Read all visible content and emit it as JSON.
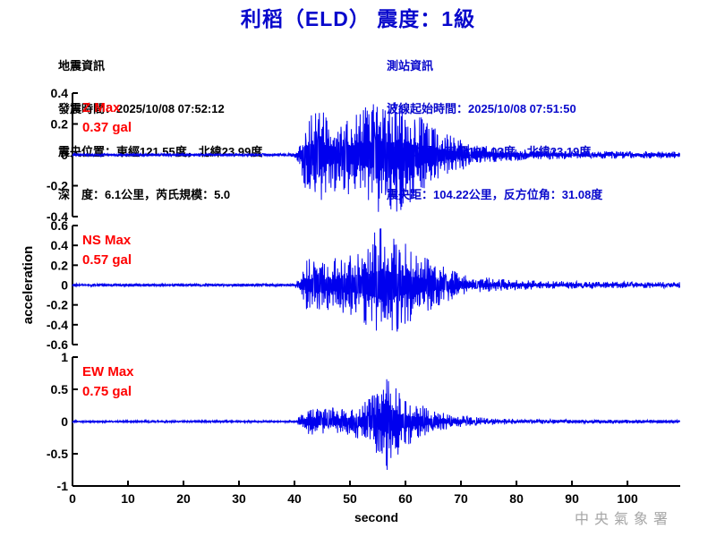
{
  "title": "利稻（ELD） 震度：1級",
  "quake_info": {
    "heading": "地震資訊",
    "lines": [
      "發震時間：2025/10/08 07:52:12",
      "震央位置：東經121.55度，北緯23.99度",
      "深　度：6.1公里，芮氏規模：5.0"
    ]
  },
  "station_info": {
    "heading": "測站資訊",
    "lines": [
      "波線起始時間：2025/10/08 07:51:50",
      "測站位置：東經121.03度，北緯23.19度",
      "震央距：104.22公里，反方位角：31.08度"
    ]
  },
  "watermark": "中央氣象署",
  "colors": {
    "title_blue": "#0808CC",
    "waveform_blue": "#0000EE",
    "max_label_red": "#FF0000",
    "axis_black": "#000000",
    "watermark_gray": "#A6A6A6"
  },
  "chart_data": {
    "type": "line",
    "subtype": "seismogram-3-component",
    "xlabel": "second",
    "ylabel": "acceleration",
    "x_range": [
      0,
      109.5
    ],
    "x_ticks": [
      0,
      10,
      20,
      30,
      40,
      50,
      60,
      70,
      80,
      90,
      100
    ],
    "grid": false,
    "seed": 20251008,
    "panels": [
      {
        "channel": "Z",
        "max_label": "Z Max",
        "max_value_label": "0.37 gal",
        "max_gal": 0.37,
        "ylim": [
          -0.4,
          0.4
        ],
        "y_ticks": [
          0.4,
          0.2,
          0,
          -0.2,
          -0.4
        ],
        "envelope": [
          [
            0,
            0.009
          ],
          [
            38,
            0.009
          ],
          [
            40,
            0.013
          ],
          [
            41,
            0.06
          ],
          [
            41.8,
            0.22
          ],
          [
            43,
            0.26
          ],
          [
            44.5,
            0.3
          ],
          [
            46,
            0.24
          ],
          [
            48,
            0.2
          ],
          [
            50,
            0.24
          ],
          [
            52,
            0.27
          ],
          [
            54,
            0.33
          ],
          [
            55.5,
            0.37
          ],
          [
            57,
            0.32
          ],
          [
            58.5,
            0.34
          ],
          [
            60,
            0.3
          ],
          [
            61.5,
            0.26
          ],
          [
            63,
            0.22
          ],
          [
            65,
            0.16
          ],
          [
            67,
            0.13
          ],
          [
            69,
            0.1
          ],
          [
            71,
            0.08
          ],
          [
            74,
            0.055
          ],
          [
            78,
            0.042
          ],
          [
            82,
            0.032
          ],
          [
            88,
            0.026
          ],
          [
            95,
            0.023
          ],
          [
            103,
            0.021
          ],
          [
            109.5,
            0.02
          ]
        ]
      },
      {
        "channel": "NS",
        "max_label": "NS Max",
        "max_value_label": "0.57 gal",
        "max_gal": 0.57,
        "ylim": [
          -0.6,
          0.6
        ],
        "y_ticks": [
          0.6,
          0.4,
          0.2,
          0,
          -0.2,
          -0.4,
          -0.6
        ],
        "envelope": [
          [
            0,
            0.012
          ],
          [
            38,
            0.012
          ],
          [
            40,
            0.016
          ],
          [
            41,
            0.07
          ],
          [
            42,
            0.2
          ],
          [
            43.5,
            0.24
          ],
          [
            45,
            0.2
          ],
          [
            47,
            0.22
          ],
          [
            49,
            0.25
          ],
          [
            51,
            0.28
          ],
          [
            53,
            0.34
          ],
          [
            54.5,
            0.45
          ],
          [
            56,
            0.57
          ],
          [
            57.5,
            0.45
          ],
          [
            59,
            0.38
          ],
          [
            60.5,
            0.33
          ],
          [
            62,
            0.28
          ],
          [
            64,
            0.22
          ],
          [
            66,
            0.17
          ],
          [
            68,
            0.13
          ],
          [
            70,
            0.1
          ],
          [
            73,
            0.072
          ],
          [
            76,
            0.055
          ],
          [
            80,
            0.042
          ],
          [
            85,
            0.034
          ],
          [
            92,
            0.03
          ],
          [
            100,
            0.027
          ],
          [
            109.5,
            0.024
          ]
        ]
      },
      {
        "channel": "EW",
        "max_label": "EW Max",
        "max_value_label": "0.75 gal",
        "max_gal": 0.75,
        "ylim": [
          -1,
          1
        ],
        "y_ticks": [
          1,
          0.5,
          0,
          -0.5,
          -1
        ],
        "envelope": [
          [
            0,
            0.016
          ],
          [
            38,
            0.016
          ],
          [
            40,
            0.02
          ],
          [
            41,
            0.09
          ],
          [
            42,
            0.18
          ],
          [
            43.5,
            0.22
          ],
          [
            45,
            0.19
          ],
          [
            47,
            0.21
          ],
          [
            49,
            0.2
          ],
          [
            51,
            0.24
          ],
          [
            53,
            0.32
          ],
          [
            54.5,
            0.45
          ],
          [
            56,
            0.62
          ],
          [
            56.8,
            0.75
          ],
          [
            58,
            0.55
          ],
          [
            59.5,
            0.42
          ],
          [
            61,
            0.33
          ],
          [
            63,
            0.25
          ],
          [
            65,
            0.18
          ],
          [
            67,
            0.13
          ],
          [
            69,
            0.1
          ],
          [
            72,
            0.072
          ],
          [
            75,
            0.052
          ],
          [
            79,
            0.042
          ],
          [
            84,
            0.034
          ],
          [
            90,
            0.03
          ],
          [
            98,
            0.027
          ],
          [
            109.5,
            0.024
          ]
        ]
      }
    ]
  }
}
